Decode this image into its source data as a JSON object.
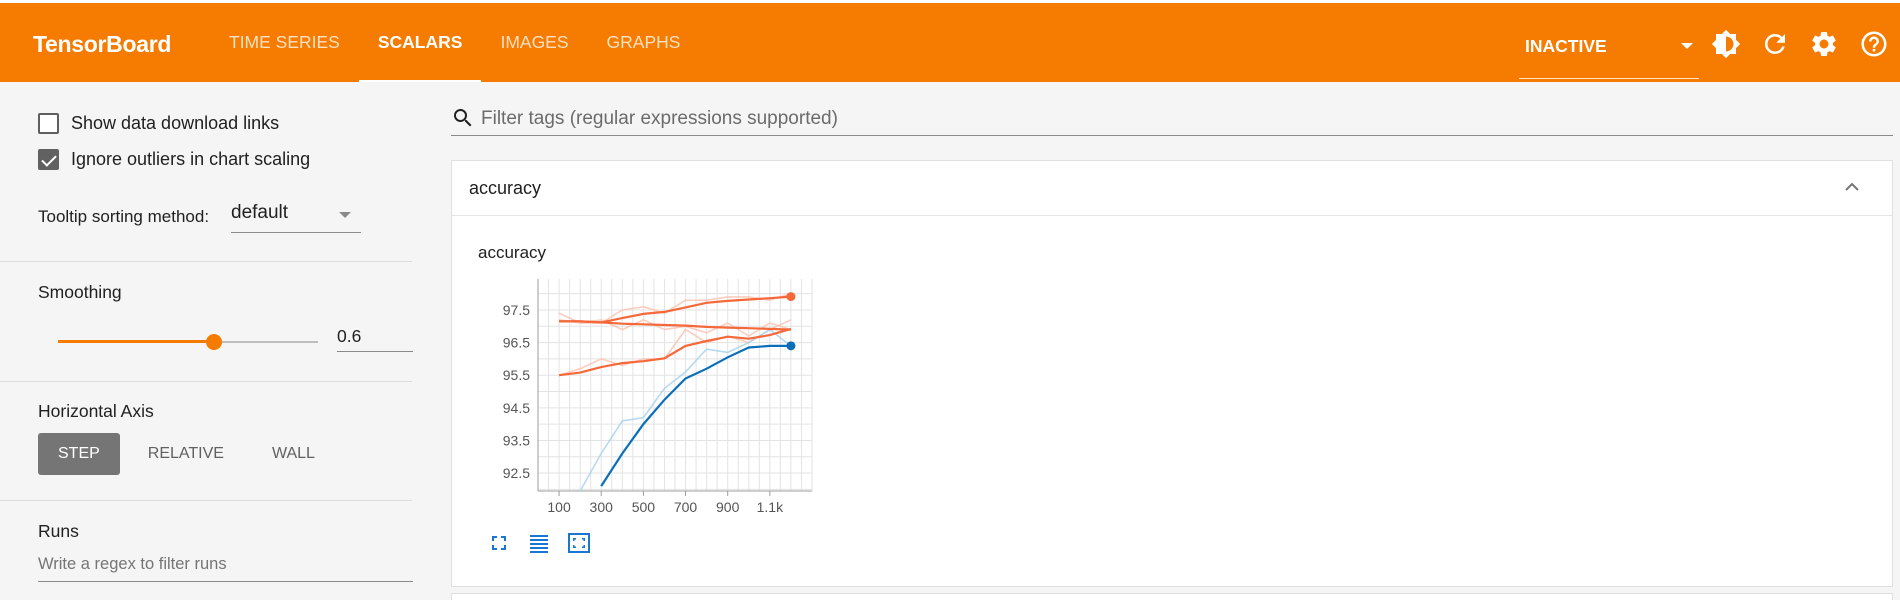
{
  "header": {
    "brand": "TensorBoard",
    "tabs": [
      {
        "label": "TIME SERIES",
        "active": false
      },
      {
        "label": "SCALARS",
        "active": true
      },
      {
        "label": "IMAGES",
        "active": false
      },
      {
        "label": "GRAPHS",
        "active": false
      }
    ],
    "status": "INACTIVE",
    "icons": [
      "theme-icon",
      "refresh-icon",
      "settings-icon",
      "help-icon"
    ]
  },
  "sidebar": {
    "show_download_links": {
      "label": "Show data download links",
      "checked": false
    },
    "ignore_outliers": {
      "label": "Ignore outliers in chart scaling",
      "checked": true
    },
    "tooltip_sorting": {
      "label": "Tooltip sorting method:",
      "value": "default"
    },
    "smoothing": {
      "label": "Smoothing",
      "value": "0.6",
      "fraction": 0.6
    },
    "horizontal_axis": {
      "label": "Horizontal Axis",
      "options": [
        {
          "label": "STEP",
          "active": true
        },
        {
          "label": "RELATIVE",
          "active": false
        },
        {
          "label": "WALL",
          "active": false
        }
      ]
    },
    "runs": {
      "label": "Runs",
      "placeholder": "Write a regex to filter runs"
    }
  },
  "main": {
    "filter_placeholder": "Filter tags (regular expressions supported)",
    "card_title": "accuracy"
  },
  "colors": {
    "accent": "#f57c00",
    "orange_series": "#f4683a",
    "blue_series": "#0b6fb8"
  },
  "chart_data": {
    "type": "line",
    "title": "accuracy",
    "xlabel": "",
    "ylabel": "",
    "x_ticks": [
      "100",
      "300",
      "500",
      "700",
      "900",
      "1.1k"
    ],
    "y_ticks": [
      "92.5",
      "93.5",
      "94.5",
      "95.5",
      "96.5",
      "97.5"
    ],
    "xlim": [
      0,
      1300
    ],
    "ylim": [
      91.95,
      98.45
    ],
    "grid": true,
    "legend": "none",
    "x": [
      100,
      200,
      300,
      400,
      500,
      600,
      700,
      800,
      900,
      1000,
      1100,
      1200
    ],
    "series": [
      {
        "color": "#f4683a",
        "raw": [
          97.2,
          97.1,
          97.1,
          97.5,
          97.6,
          97.4,
          97.8,
          97.8,
          97.9,
          97.9,
          97.8,
          98.0
        ],
        "values": [
          97.15,
          97.15,
          97.12,
          97.25,
          97.38,
          97.44,
          97.58,
          97.72,
          97.78,
          97.82,
          97.86,
          97.91
        ]
      },
      {
        "color": "#f4683a",
        "raw": [
          97.4,
          97.1,
          97.2,
          96.9,
          97.2,
          96.9,
          97.0,
          96.8,
          97.1,
          96.7,
          97.1,
          96.9
        ],
        "values": [
          97.15,
          97.15,
          97.12,
          97.08,
          97.06,
          97.04,
          97.02,
          96.98,
          96.96,
          96.94,
          96.92,
          96.9
        ]
      },
      {
        "color": "#f4683a",
        "raw": [
          95.5,
          95.7,
          96.0,
          95.8,
          96.0,
          96.0,
          96.9,
          96.5,
          96.7,
          96.5,
          96.9,
          97.2
        ],
        "values": [
          95.5,
          95.58,
          95.75,
          95.87,
          95.93,
          96.02,
          96.4,
          96.55,
          96.68,
          96.62,
          96.73,
          96.92
        ]
      },
      {
        "color": "#0b6fb8",
        "raw": [
          null,
          91.5,
          93.1,
          94.1,
          94.2,
          95.1,
          95.6,
          96.3,
          96.2,
          96.5,
          96.9,
          96.4
        ],
        "values": [
          null,
          null,
          92.1,
          93.1,
          94.0,
          94.75,
          95.4,
          95.7,
          96.05,
          96.35,
          96.4,
          96.4
        ]
      }
    ]
  }
}
